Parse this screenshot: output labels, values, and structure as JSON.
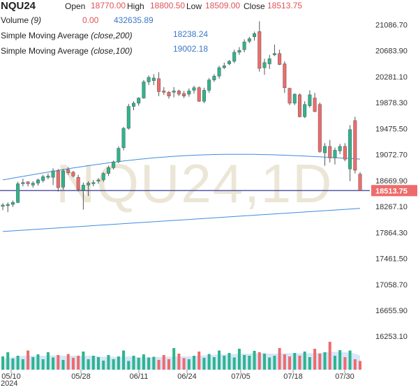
{
  "header": {
    "symbol": "NQU24",
    "open_label": "Open",
    "open": "18770.00",
    "high_label": "High",
    "high": "18800.50",
    "low_label": "Low",
    "low": "18509.00",
    "close_label": "Close",
    "close": "18513.75",
    "volume_label": "Volume",
    "volume_period": "(9)",
    "volume_value1": "0.00",
    "volume_value2": "432635.89",
    "sma200_label": "Simple Moving Average",
    "sma200_params": "(close,200)",
    "sma200_value": "18238.24",
    "sma100_label": "Simple Moving Average",
    "sma100_params": "(close,100)",
    "sma100_value": "19002.18"
  },
  "watermark": "NQU24,1D",
  "colors": {
    "up": "#2db58d",
    "down": "#ef6b6b",
    "sma": "#3f8be0",
    "price_line": "#5a5aa8",
    "price_badge": "#ef6b6b",
    "volume_area": "#d7e6fb",
    "watermark": "#ece6d6"
  },
  "chart_data": {
    "type": "candlestick",
    "y_ticks": [
      "21086.70",
      "20683.90",
      "20281.10",
      "19878.30",
      "19475.50",
      "19072.70",
      "18669.90",
      "18267.10",
      "17864.30",
      "17461.50",
      "17058.70",
      "16655.90",
      "16253.10"
    ],
    "ylim": [
      16050,
      21200
    ],
    "x_ticks": [
      "05/10",
      "05/28",
      "06/11",
      "06/24",
      "07/05",
      "07/18",
      "07/30"
    ],
    "x_sublabel": "2024",
    "current_price": "18513.75",
    "series": [
      {
        "name": "NQU24",
        "kind": "ohlc",
        "ohlc": [
          [
            18270,
            18320,
            18210,
            18290
          ],
          [
            18280,
            18330,
            18180,
            18300
          ],
          [
            18300,
            18360,
            18260,
            18330
          ],
          [
            18330,
            18650,
            18320,
            18620
          ],
          [
            18620,
            18700,
            18580,
            18640
          ],
          [
            18650,
            18660,
            18580,
            18620
          ],
          [
            18600,
            18660,
            18560,
            18630
          ],
          [
            18630,
            18700,
            18590,
            18680
          ],
          [
            18670,
            18760,
            18640,
            18730
          ],
          [
            18720,
            18780,
            18690,
            18740
          ],
          [
            18720,
            18860,
            18600,
            18820
          ],
          [
            18820,
            18850,
            18500,
            18560
          ],
          [
            18570,
            18850,
            18530,
            18820
          ],
          [
            18840,
            18880,
            18760,
            18790
          ],
          [
            18800,
            18820,
            18720,
            18740
          ],
          [
            18720,
            18760,
            18500,
            18530
          ],
          [
            18520,
            18640,
            18220,
            18600
          ],
          [
            18600,
            18660,
            18430,
            18630
          ],
          [
            18620,
            18680,
            18580,
            18640
          ],
          [
            18660,
            18710,
            18620,
            18680
          ],
          [
            18680,
            18800,
            18650,
            18780
          ],
          [
            18780,
            18900,
            18740,
            18870
          ],
          [
            18870,
            18980,
            18840,
            18960
          ],
          [
            18960,
            19200,
            18940,
            19170
          ],
          [
            19180,
            19500,
            19140,
            19480
          ],
          [
            19480,
            19860,
            19460,
            19820
          ],
          [
            19820,
            19900,
            19760,
            19870
          ],
          [
            19870,
            19960,
            19830,
            19950
          ],
          [
            19950,
            20230,
            19940,
            20200
          ],
          [
            20200,
            20300,
            20150,
            20270
          ],
          [
            20220,
            20320,
            20150,
            20260
          ],
          [
            20250,
            20350,
            19980,
            20050
          ],
          [
            20060,
            20120,
            20000,
            20040
          ],
          [
            20040,
            20060,
            19940,
            19980
          ],
          [
            20040,
            20120,
            19960,
            20060
          ],
          [
            20060,
            20080,
            19980,
            20010
          ],
          [
            20020,
            20060,
            19950,
            19980
          ],
          [
            20010,
            20100,
            19970,
            20060
          ],
          [
            20070,
            20140,
            20020,
            20110
          ],
          [
            20110,
            20130,
            19890,
            19900
          ],
          [
            19900,
            20110,
            19870,
            20070
          ],
          [
            20070,
            20260,
            20030,
            20230
          ],
          [
            20230,
            20320,
            20200,
            20290
          ],
          [
            20290,
            20450,
            20250,
            20420
          ],
          [
            20420,
            20500,
            20400,
            20450
          ],
          [
            20480,
            20540,
            20460,
            20520
          ],
          [
            20520,
            20700,
            20490,
            20660
          ],
          [
            20660,
            20740,
            20620,
            20690
          ],
          [
            20700,
            20860,
            20660,
            20820
          ],
          [
            20830,
            20900,
            20800,
            20870
          ],
          [
            20900,
            20980,
            20840,
            20950
          ],
          [
            20980,
            21140,
            20360,
            20410
          ],
          [
            20420,
            20560,
            20310,
            20500
          ],
          [
            20480,
            20620,
            20400,
            20560
          ],
          [
            20620,
            20780,
            20600,
            20640
          ],
          [
            20640,
            20700,
            20460,
            20470
          ],
          [
            20480,
            20520,
            20030,
            20110
          ],
          [
            20100,
            20110,
            19840,
            19870
          ],
          [
            19870,
            20020,
            19840,
            20010
          ],
          [
            20000,
            20020,
            19650,
            19660
          ],
          [
            19660,
            19900,
            19640,
            19850
          ],
          [
            19830,
            20070,
            19800,
            20000
          ],
          [
            19950,
            20030,
            19730,
            19740
          ],
          [
            19850,
            19880,
            19100,
            19120
          ],
          [
            19100,
            19250,
            18900,
            19200
          ],
          [
            19200,
            19300,
            18950,
            19020
          ],
          [
            19020,
            19180,
            18920,
            19140
          ],
          [
            19130,
            19240,
            19080,
            19200
          ],
          [
            19200,
            19250,
            18970,
            19000
          ],
          [
            18850,
            19530,
            18660,
            19460
          ],
          [
            19600,
            19660,
            18780,
            18830
          ],
          [
            18770,
            18800,
            18509,
            18513.75
          ]
        ]
      },
      {
        "name": "Simple Moving Average (close,200)",
        "kind": "line",
        "values": [
          [
            0,
            17880
          ],
          [
            71,
            18238.24
          ]
        ]
      },
      {
        "name": "Simple Moving Average (close,100)",
        "kind": "line",
        "values": [
          [
            0,
            18680
          ],
          [
            71,
            19002.18
          ]
        ]
      },
      {
        "name": "Volume (9)",
        "kind": "volume",
        "values": [
          0.38,
          0.5,
          0.32,
          0.4,
          0.3,
          0.55,
          0.36,
          0.44,
          0.3,
          0.5,
          0.35,
          0.42,
          0.28,
          0.45,
          0.34,
          0.4,
          0.52,
          0.3,
          0.4,
          0.36,
          0.26,
          0.42,
          0.3,
          0.38,
          0.55,
          0.25,
          0.4,
          0.34,
          0.44,
          0.35,
          0.37,
          0.28,
          0.42,
          0.3,
          0.62,
          0.46,
          0.33,
          0.3,
          0.4,
          0.52,
          0.34,
          0.45,
          0.36,
          0.55,
          0.4,
          0.48,
          0.35,
          0.6,
          0.42,
          0.4,
          0.54,
          0.5,
          0.46,
          0.35,
          0.4,
          0.62,
          0.44,
          0.38,
          0.48,
          0.4,
          0.52,
          0.36,
          0.6,
          0.46,
          0.5,
          0.8,
          0.4,
          0.56,
          0.36,
          0.55,
          0.3,
          0.25
        ],
        "area": [
          0.3,
          0.34,
          0.36,
          0.38,
          0.4,
          0.4,
          0.4,
          0.4,
          0.4,
          0.4,
          0.41,
          0.41,
          0.4,
          0.4,
          0.4,
          0.4,
          0.39,
          0.4,
          0.4,
          0.38,
          0.37,
          0.37,
          0.37,
          0.36,
          0.37,
          0.38,
          0.37,
          0.36,
          0.36,
          0.35,
          0.36,
          0.36,
          0.37,
          0.37,
          0.38,
          0.38,
          0.38,
          0.38,
          0.39,
          0.4,
          0.41,
          0.42,
          0.43,
          0.44,
          0.44,
          0.44,
          0.45,
          0.46,
          0.46,
          0.46,
          0.47,
          0.47,
          0.47,
          0.46,
          0.46,
          0.47,
          0.47,
          0.47,
          0.47,
          0.47,
          0.47,
          0.47,
          0.48,
          0.48,
          0.49,
          0.52,
          0.51,
          0.5,
          0.5,
          0.49,
          0.46,
          0.4
        ]
      }
    ]
  }
}
